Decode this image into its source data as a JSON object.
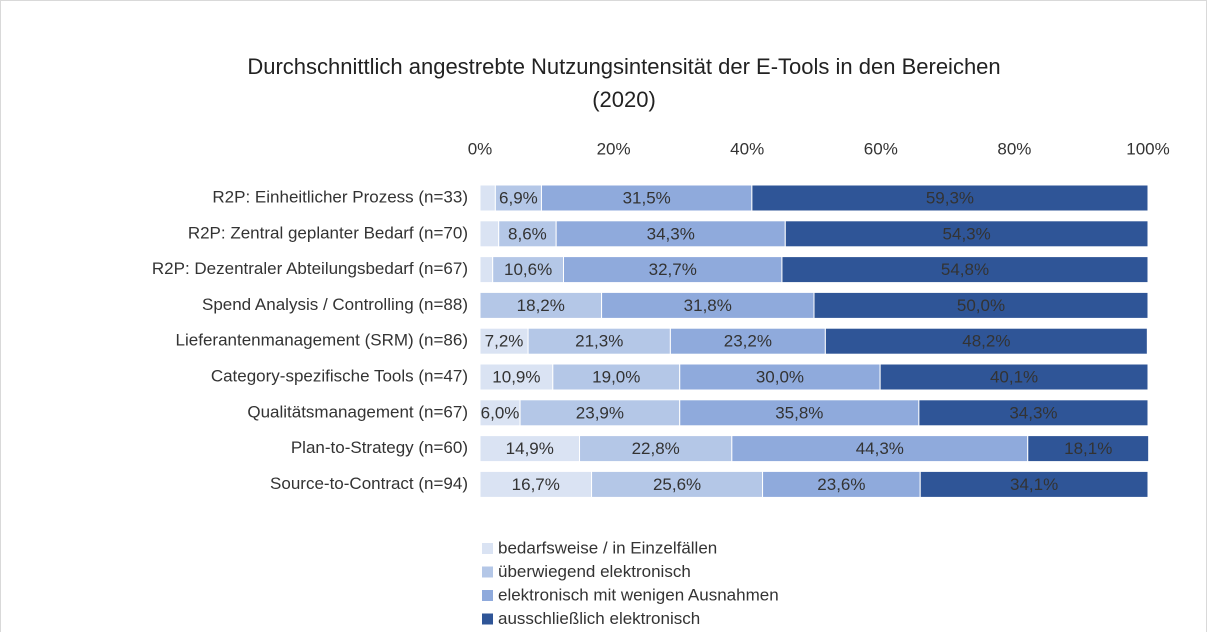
{
  "chart_data": {
    "type": "stacked-bar-horizontal",
    "title": "Durchschnittlich angestrebte Nutzungsintensität der E-Tools in den Bereichen (2020)",
    "categories": [
      "R2P: Einheitlicher Prozess (n=33)",
      "R2P: Zentral geplanter Bedarf (n=70)",
      "R2P: Dezentraler Abteilungsbedarf (n=67)",
      "Spend Analysis / Controlling (n=88)",
      "Lieferantenmanagement (SRM) (n=86)",
      "Category-spezifische Tools (n=47)",
      "Qualitätsmanagement (n=67)",
      "Plan-to-Strategy (n=60)",
      "Source-to-Contract (n=94)"
    ],
    "series": [
      {
        "name": "bedarfsweise / in Einzelfällen",
        "color": "#dae3f3",
        "values": [
          2.3,
          2.8,
          1.9,
          0,
          7.2,
          10.9,
          6.0,
          14.9,
          16.7
        ],
        "value_labels": [
          null,
          null,
          null,
          null,
          "7,2%",
          "10,9%",
          "6,0%",
          "14,9%",
          "16,7%"
        ]
      },
      {
        "name": "überwiegend elektronisch",
        "color": "#b4c7e7",
        "values": [
          6.9,
          8.6,
          10.6,
          18.2,
          21.3,
          19.0,
          23.9,
          22.8,
          25.6
        ],
        "value_labels": [
          "6,9%",
          "8,6%",
          "10,6%",
          "18,2%",
          "21,3%",
          "19,0%",
          "23,9%",
          "22,8%",
          "25,6%"
        ]
      },
      {
        "name": "elektronisch mit wenigen Ausnahmen",
        "color": "#8faadc",
        "values": [
          31.5,
          34.3,
          32.7,
          31.8,
          23.2,
          30.0,
          35.8,
          44.3,
          23.6
        ],
        "value_labels": [
          "31,5%",
          "34,3%",
          "32,7%",
          "31,8%",
          "23,2%",
          "30,0%",
          "35,8%",
          "44,3%",
          "23,6%"
        ]
      },
      {
        "name": "ausschließlich elektronisch",
        "color": "#2f5597",
        "values": [
          59.3,
          54.3,
          54.8,
          50.0,
          48.2,
          40.1,
          34.3,
          18.1,
          34.1
        ],
        "value_labels": [
          "59,3%",
          "54,3%",
          "54,8%",
          "50,0%",
          "48,2%",
          "40,1%",
          "34,3%",
          "18,1%",
          "34,1%"
        ]
      }
    ],
    "xlim": [
      0,
      100
    ],
    "xticks": [
      {
        "value": 0,
        "label": "0%"
      },
      {
        "value": 20,
        "label": "20%"
      },
      {
        "value": 40,
        "label": "40%"
      },
      {
        "value": 60,
        "label": "60%"
      },
      {
        "value": 80,
        "label": "80%"
      },
      {
        "value": 100,
        "label": "100%"
      }
    ]
  }
}
